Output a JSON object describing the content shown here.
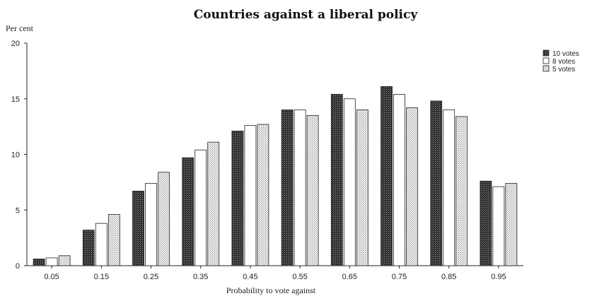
{
  "chart_data": {
    "type": "bar",
    "title": "Countries against a liberal policy",
    "ylabel": "Per cent",
    "xlabel": "Probability to vote against",
    "categories": [
      "0.05",
      "0.15",
      "0.25",
      "0.35",
      "0.45",
      "0.55",
      "0.65",
      "0.75",
      "0.85",
      "0.95"
    ],
    "ylim": [
      0,
      20
    ],
    "yticks": [
      "0",
      "5",
      "10",
      "15",
      "20"
    ],
    "legend_position": "top-right",
    "grid": false,
    "series": [
      {
        "name": "10 votes",
        "values": [
          0.6,
          3.2,
          6.7,
          9.7,
          12.1,
          14.0,
          15.4,
          16.1,
          14.8,
          7.6
        ],
        "fill": "dark"
      },
      {
        "name": "8 votes",
        "values": [
          0.7,
          3.8,
          7.4,
          10.4,
          12.6,
          14.0,
          15.0,
          15.4,
          14.0,
          7.1
        ],
        "fill": "white"
      },
      {
        "name": "5 votes",
        "values": [
          0.9,
          4.6,
          8.4,
          11.1,
          12.7,
          13.5,
          14.0,
          14.2,
          13.4,
          7.4
        ],
        "fill": "light"
      }
    ]
  }
}
